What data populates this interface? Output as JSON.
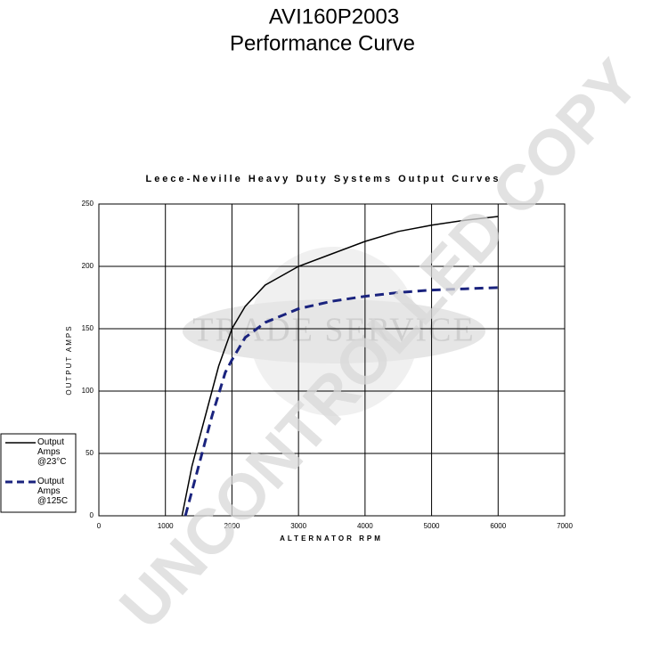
{
  "chart_data": {
    "type": "line",
    "title": "AVI160P2003",
    "subtitle": "Performance Curve",
    "plot_title": "Leece-Neville Heavy Duty Systems Output Curves",
    "xlabel": "ALTERNATOR RPM",
    "ylabel": "OUTPUT AMPS",
    "watermark": "UNCONTROLLED COPY",
    "watermark_badge": "TRADE SERVICE",
    "xlim": [
      0,
      7000
    ],
    "xticks": [
      0,
      1000,
      2000,
      3000,
      4000,
      5000,
      6000,
      7000
    ],
    "ylim": [
      0,
      250
    ],
    "yticks": [
      0,
      50,
      100,
      150,
      200,
      250
    ],
    "grid": true,
    "legend": "left",
    "series": [
      {
        "name": "Output Amps @23°C",
        "color": "#000000",
        "dash": false,
        "x": [
          1250,
          1400,
          1600,
          1800,
          2000,
          2200,
          2500,
          3000,
          3500,
          4000,
          4500,
          5000,
          5500,
          6000
        ],
        "values": [
          0,
          40,
          80,
          120,
          150,
          168,
          185,
          200,
          210,
          220,
          228,
          233,
          237,
          240
        ]
      },
      {
        "name": "Output Amps @125C",
        "color": "#1a237e",
        "dash": true,
        "x": [
          1300,
          1500,
          1700,
          1900,
          2000,
          2200,
          2500,
          3000,
          3500,
          4000,
          4500,
          5000,
          5500,
          6000
        ],
        "values": [
          0,
          40,
          80,
          115,
          125,
          143,
          155,
          166,
          172,
          176,
          179,
          181,
          182,
          183
        ]
      }
    ]
  }
}
